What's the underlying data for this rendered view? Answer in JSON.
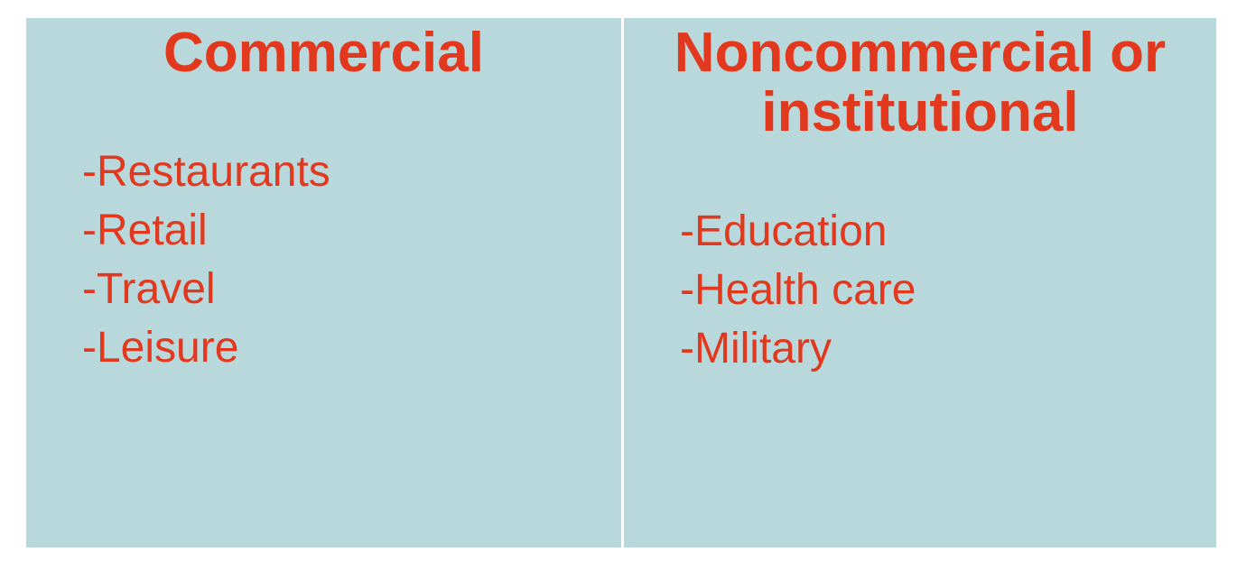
{
  "slide": {
    "colors": {
      "page_bg": "#ffffff",
      "panel_bg": "#b8d8dc",
      "text": "#e2391e"
    },
    "columns": [
      {
        "title": "Commercial",
        "items": [
          "-Restaurants",
          "-Retail",
          "-Travel",
          "-Leisure"
        ]
      },
      {
        "title": "Noncommercial or institutional",
        "items": [
          "-Education",
          "-Health care",
          "-Military"
        ]
      }
    ]
  }
}
